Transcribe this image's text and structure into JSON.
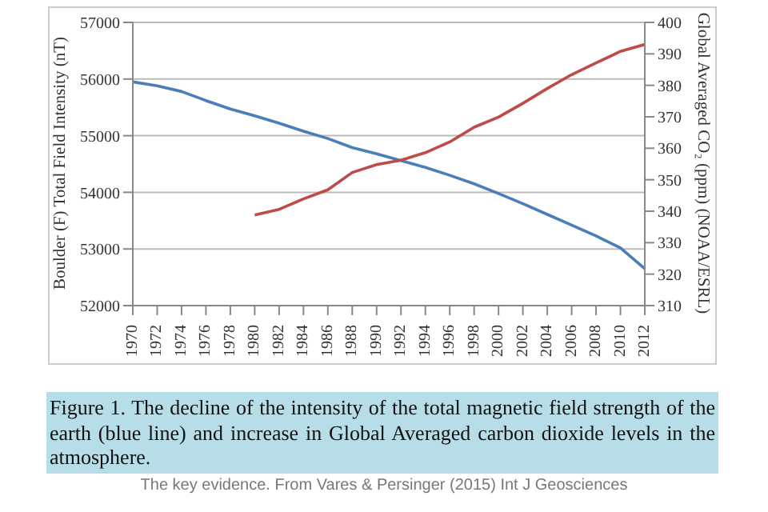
{
  "chart_data": {
    "type": "line",
    "ylabel": "Boulder (F) Total Field Intensity (nT)",
    "y2label": "Global Averaged CO₂ (ppm) (NOAA/ESRL)",
    "x": [
      1970,
      1972,
      1974,
      1976,
      1978,
      1980,
      1982,
      1984,
      1986,
      1988,
      1990,
      1992,
      1994,
      1996,
      1998,
      2000,
      2002,
      2004,
      2006,
      2008,
      2010,
      2012
    ],
    "series": [
      {
        "color": "#4a7ebb",
        "values": [
          55950,
          55880,
          55780,
          55620,
          55470,
          55350,
          55220,
          55080,
          54950,
          54790,
          54680,
          54560,
          54440,
          54300,
          54150,
          53980,
          53800,
          53610,
          53420,
          53230,
          53020,
          52650
        ]
      },
      {
        "color": "#be4b48",
        "axis": "y2",
        "values": [
          null,
          null,
          null,
          null,
          null,
          338.8,
          340.6,
          343.9,
          346.8,
          352.3,
          354.8,
          356.2,
          358.6,
          362,
          366.7,
          369.9,
          374.3,
          379,
          383.4,
          387.1,
          390.8,
          393
        ]
      }
    ],
    "xlim": [
      1970,
      2012
    ],
    "xticks": [
      1970,
      1972,
      1974,
      1976,
      1978,
      1980,
      1982,
      1984,
      1986,
      1988,
      1990,
      1992,
      1994,
      1996,
      1998,
      2000,
      2002,
      2004,
      2006,
      2008,
      2010,
      2012
    ],
    "ylim": [
      52000,
      57000
    ],
    "yticks": [
      52000,
      53000,
      54000,
      55000,
      56000,
      57000
    ],
    "y2lim": [
      310,
      400
    ],
    "y2ticks": [
      310,
      320,
      330,
      340,
      350,
      360,
      370,
      380,
      390,
      400
    ],
    "grid": "y",
    "marker": "none",
    "line_style": "solid",
    "legend": false,
    "annotations": [
      "Figure 1. The decline of the intensity of the total magnetic field strength of the earth (blue line) and increase in Global Averaged carbon dioxide levels in the atmosphere.",
      "The key evidence. From Vares & Persinger (2015) Int J Geosciences"
    ]
  }
}
